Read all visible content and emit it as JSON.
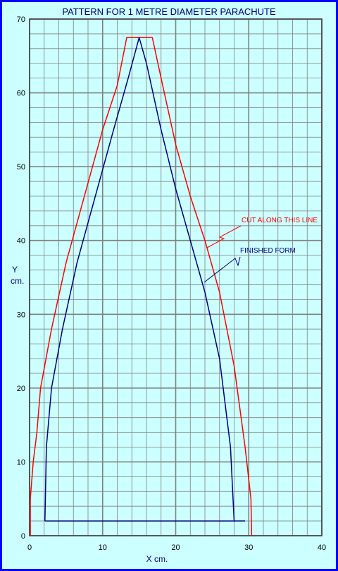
{
  "chart_data": {
    "type": "line",
    "title": "PATTERN FOR 1 METRE DIAMETER PARACHUTE",
    "xlabel": "X  cm.",
    "ylabel_line1": "Y",
    "ylabel_line2": "cm.",
    "xlim": [
      0,
      40
    ],
    "ylim": [
      0,
      70
    ],
    "x_ticks": [
      0,
      10,
      20,
      30,
      40
    ],
    "y_ticks": [
      0,
      10,
      20,
      30,
      40,
      50,
      60,
      70
    ],
    "grid": true,
    "background_color": "#ccffff",
    "grid_color": "#808080",
    "border_color": "#0000ff",
    "series": [
      {
        "name": "CUT ALONG THIS LINE",
        "color": "#ff0000",
        "points": [
          [
            0.1,
            0
          ],
          [
            0.1,
            5
          ],
          [
            0.5,
            10
          ],
          [
            1,
            14
          ],
          [
            1.5,
            20
          ],
          [
            3,
            28
          ],
          [
            5,
            37
          ],
          [
            7.5,
            46
          ],
          [
            10,
            55
          ],
          [
            12,
            61
          ],
          [
            13.3,
            67.5
          ],
          [
            16.8,
            67.5
          ],
          [
            18,
            62
          ],
          [
            20,
            53
          ],
          [
            22,
            46
          ],
          [
            24,
            40
          ],
          [
            26,
            33
          ],
          [
            28,
            23
          ],
          [
            29.5,
            12
          ],
          [
            30.3,
            5
          ],
          [
            30.4,
            0
          ]
        ]
      },
      {
        "name": "FINISHED FORM",
        "color": "#000080",
        "points": [
          [
            2.1,
            2
          ],
          [
            2.3,
            12
          ],
          [
            3,
            20
          ],
          [
            4.5,
            28
          ],
          [
            6.5,
            37
          ],
          [
            9,
            46
          ],
          [
            11.5,
            55
          ],
          [
            13.5,
            62
          ],
          [
            15,
            67.5
          ],
          [
            16,
            64
          ],
          [
            18,
            55
          ],
          [
            20,
            47
          ],
          [
            22,
            40
          ],
          [
            24,
            33
          ],
          [
            26,
            24
          ],
          [
            27.5,
            12
          ],
          [
            28,
            2
          ],
          [
            2.1,
            2
          ]
        ]
      }
    ],
    "extra_segments": [
      {
        "color": "#000080",
        "points": [
          [
            28,
            2
          ],
          [
            29.5,
            2
          ]
        ]
      }
    ],
    "annotations": [
      {
        "key": "cut",
        "text": "CUT ALONG THIS LINE",
        "color": "#ff0000"
      },
      {
        "key": "finished",
        "text": "FINISHED FORM",
        "color": "#000080"
      }
    ]
  }
}
